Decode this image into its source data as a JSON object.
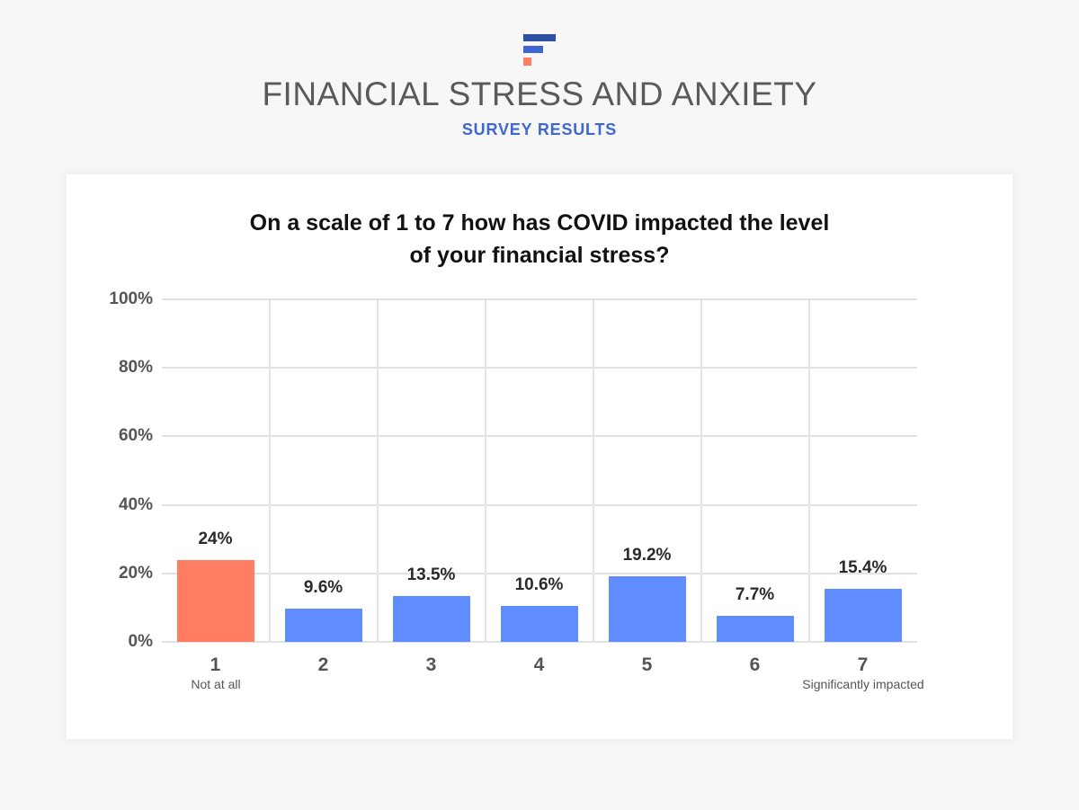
{
  "header": {
    "logo_icon": "stacked-bars-logo-icon",
    "title": "FINANCIAL STRESS AND ANXIETY",
    "subtitle": "SURVEY RESULTS"
  },
  "colors": {
    "highlight": "#ff7e63",
    "bar": "#5f8cff",
    "subtitle": "#3f67d3",
    "grid": "#e2e2e2"
  },
  "chart_data": {
    "type": "bar",
    "title": "On a scale of 1 to 7 how has COVID impacted the level of your financial stress?",
    "title_lines": [
      "On a scale of 1 to 7 how has COVID impacted the level",
      "of your financial stress?"
    ],
    "categories": [
      "1",
      "2",
      "3",
      "4",
      "5",
      "6",
      "7"
    ],
    "category_sublabels": {
      "1": "Not at all",
      "7": "Significantly impacted"
    },
    "values": [
      24,
      9.6,
      13.5,
      10.6,
      19.2,
      7.7,
      15.4
    ],
    "value_labels": [
      "24%",
      "9.6%",
      "13.5%",
      "10.6%",
      "19.2%",
      "7.7%",
      "15.4%"
    ],
    "bar_colors": [
      "#ff7e63",
      "#5f8cff",
      "#5f8cff",
      "#5f8cff",
      "#5f8cff",
      "#5f8cff",
      "#5f8cff"
    ],
    "xlabel": "",
    "ylabel": "",
    "ylim": [
      0,
      100
    ],
    "yticks": [
      "0%",
      "20%",
      "40%",
      "60%",
      "80%",
      "100%"
    ],
    "grid": true,
    "legend": "none"
  }
}
